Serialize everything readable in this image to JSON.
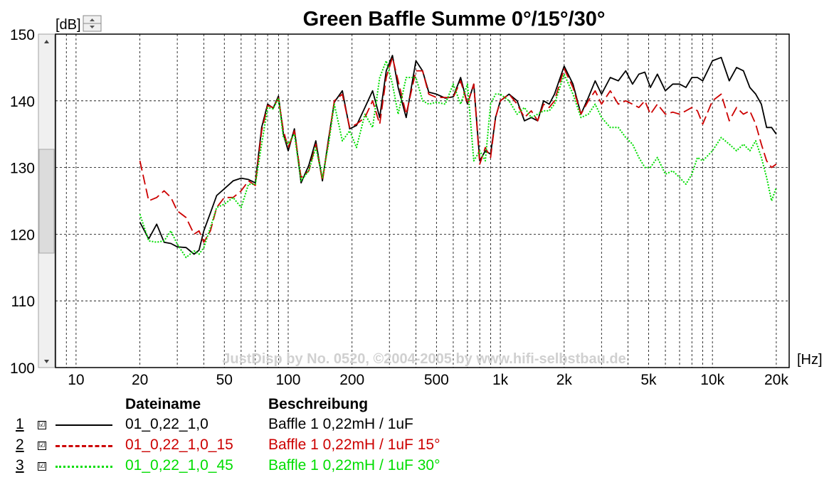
{
  "chart_data": {
    "type": "line",
    "title": "Green Baffle Summe 0°/15°/30°",
    "ylabel": "[dB]",
    "xlabel": "[Hz]",
    "x_scale": "log",
    "xlim": [
      8,
      23000
    ],
    "ylim": [
      100,
      150
    ],
    "y_ticks": [
      100,
      110,
      120,
      130,
      140,
      150
    ],
    "y_tick_labels": [
      "100",
      "110",
      "120",
      "130",
      "140",
      "150"
    ],
    "x_ticks": [
      10,
      20,
      50,
      100,
      200,
      500,
      1000,
      2000,
      5000,
      10000,
      20000
    ],
    "x_tick_labels": [
      "10",
      "20",
      "50",
      "100",
      "200",
      "500",
      "1k",
      "2k",
      "5k",
      "10k",
      "20k"
    ],
    "grid": true,
    "watermark": "JustDisp by No. 0520, ©2004-2005 by www.hifi-selbstbau.de",
    "x": [
      20,
      22,
      24,
      26,
      28,
      30,
      33,
      36,
      38,
      40,
      43,
      46,
      50,
      55,
      60,
      65,
      70,
      75,
      80,
      85,
      90,
      95,
      100,
      107,
      115,
      125,
      135,
      145,
      155,
      165,
      180,
      195,
      210,
      230,
      250,
      270,
      290,
      310,
      330,
      360,
      400,
      430,
      460,
      500,
      550,
      600,
      650,
      700,
      750,
      800,
      850,
      900,
      950,
      1000,
      1100,
      1200,
      1300,
      1400,
      1500,
      1600,
      1700,
      1800,
      2000,
      2200,
      2400,
      2600,
      2800,
      3000,
      3300,
      3600,
      3900,
      4200,
      4500,
      4800,
      5100,
      5500,
      6000,
      6500,
      7000,
      7500,
      8000,
      8500,
      9000,
      10000,
      11000,
      12000,
      13000,
      14000,
      15000,
      16000,
      17000,
      18000,
      19000,
      20000
    ],
    "series": [
      {
        "name": "Baffle 1 0,22mH / 1uF",
        "color": "#000000",
        "dash": "solid",
        "values": [
          121.8,
          119.3,
          121.5,
          118.8,
          118.6,
          118.1,
          118.0,
          117.0,
          117.6,
          120.5,
          123.2,
          125.8,
          126.8,
          128.0,
          128.4,
          128.2,
          127.7,
          136.0,
          139.5,
          138.9,
          140.7,
          135.0,
          132.5,
          135.8,
          127.7,
          130.3,
          134.0,
          128.0,
          134.3,
          139.8,
          141.5,
          135.8,
          136.3,
          139.0,
          141.5,
          137.5,
          144.5,
          146.8,
          142.0,
          137.5,
          146.0,
          144.5,
          141.3,
          141.0,
          140.4,
          140.6,
          143.5,
          139.5,
          142.5,
          131.0,
          132.5,
          132.0,
          137.5,
          140.0,
          141.0,
          140.0,
          137.0,
          137.5,
          137.0,
          140.0,
          139.5,
          141.0,
          145.2,
          142.5,
          138.0,
          140.5,
          143.0,
          141.0,
          143.5,
          143.0,
          144.5,
          142.5,
          144.0,
          144.3,
          142.0,
          144.0,
          141.5,
          142.5,
          142.5,
          142.0,
          143.5,
          143.5,
          143.0,
          146.0,
          146.5,
          143.0,
          145.0,
          144.5,
          142.0,
          141.0,
          139.5,
          136.0,
          136.0,
          135.0
        ]
      },
      {
        "name": "Baffle 1 0,22mH / 1uF 15°",
        "color": "#cc0000",
        "dash": "dashed",
        "values": [
          131.0,
          125.0,
          125.5,
          126.5,
          125.5,
          123.5,
          122.5,
          120.0,
          120.5,
          118.8,
          120.5,
          124.0,
          125.5,
          125.5,
          126.5,
          128.0,
          127.3,
          135.5,
          139.3,
          139.0,
          140.4,
          135.5,
          133.0,
          135.5,
          128.5,
          129.5,
          133.5,
          128.0,
          134.0,
          140.0,
          141.0,
          136.0,
          136.5,
          137.5,
          140.0,
          136.5,
          143.5,
          146.5,
          143.0,
          138.0,
          144.5,
          144.5,
          141.0,
          140.5,
          140.5,
          140.5,
          143.0,
          139.5,
          142.5,
          130.5,
          133.0,
          131.5,
          137.5,
          140.0,
          141.0,
          139.5,
          137.5,
          138.5,
          137.0,
          139.5,
          139.0,
          140.0,
          144.8,
          142.0,
          138.0,
          140.0,
          141.5,
          139.5,
          141.5,
          139.5,
          140.0,
          139.5,
          139.0,
          140.0,
          138.0,
          139.5,
          138.0,
          138.3,
          138.0,
          138.5,
          139.0,
          138.5,
          136.5,
          140.0,
          141.0,
          137.0,
          139.0,
          138.0,
          138.5,
          136.5,
          133.5,
          131.0,
          130.0,
          130.5
        ]
      },
      {
        "name": "Baffle 1 0,22mH / 1uF 30°",
        "color": "#00dd00",
        "dash": "dotted",
        "values": [
          123.0,
          119.0,
          118.8,
          119.0,
          120.5,
          118.5,
          116.5,
          117.5,
          117.0,
          118.0,
          121.0,
          124.0,
          124.5,
          125.5,
          124.0,
          127.5,
          127.5,
          133.5,
          139.0,
          138.8,
          140.4,
          134.5,
          133.5,
          135.0,
          128.0,
          129.5,
          133.0,
          128.5,
          133.5,
          139.5,
          134.0,
          135.5,
          133.0,
          138.0,
          136.0,
          143.5,
          146.0,
          142.5,
          138.0,
          143.5,
          143.5,
          140.0,
          139.5,
          139.8,
          139.5,
          142.5,
          139.5,
          142.5,
          131.0,
          132.5,
          131.0,
          139.5,
          141.0,
          141.0,
          140.0,
          138.0,
          139.0,
          137.5,
          138.0,
          138.5,
          138.5,
          139.5,
          144.0,
          141.0,
          137.5,
          138.0,
          139.5,
          137.5,
          136.0,
          136.0,
          134.5,
          133.5,
          131.5,
          130.0,
          130.0,
          131.5,
          129.0,
          129.5,
          128.5,
          127.5,
          129.0,
          131.5,
          131.0,
          132.5,
          134.5,
          133.5,
          132.5,
          133.5,
          132.5,
          134.0,
          131.5,
          128.5,
          125.0,
          127.0
        ]
      }
    ]
  },
  "legend": {
    "col_file": "Dateiname",
    "col_desc": "Beschreibung",
    "checkbox_mark": "☑",
    "rows": [
      {
        "index": "1",
        "file": "01_0,22_1,0",
        "desc": "Baffle 1 0,22mH / 1uF",
        "color": "#000000"
      },
      {
        "index": "2",
        "file": "01_0,22_1,0_15",
        "desc": "Baffle 1 0,22mH / 1uF 15°",
        "color": "#cc0000"
      },
      {
        "index": "3",
        "file": "01_0,22_1,0_45",
        "desc": "Baffle 1 0,22mH / 1uF 30°",
        "color": "#00dd00"
      }
    ]
  }
}
